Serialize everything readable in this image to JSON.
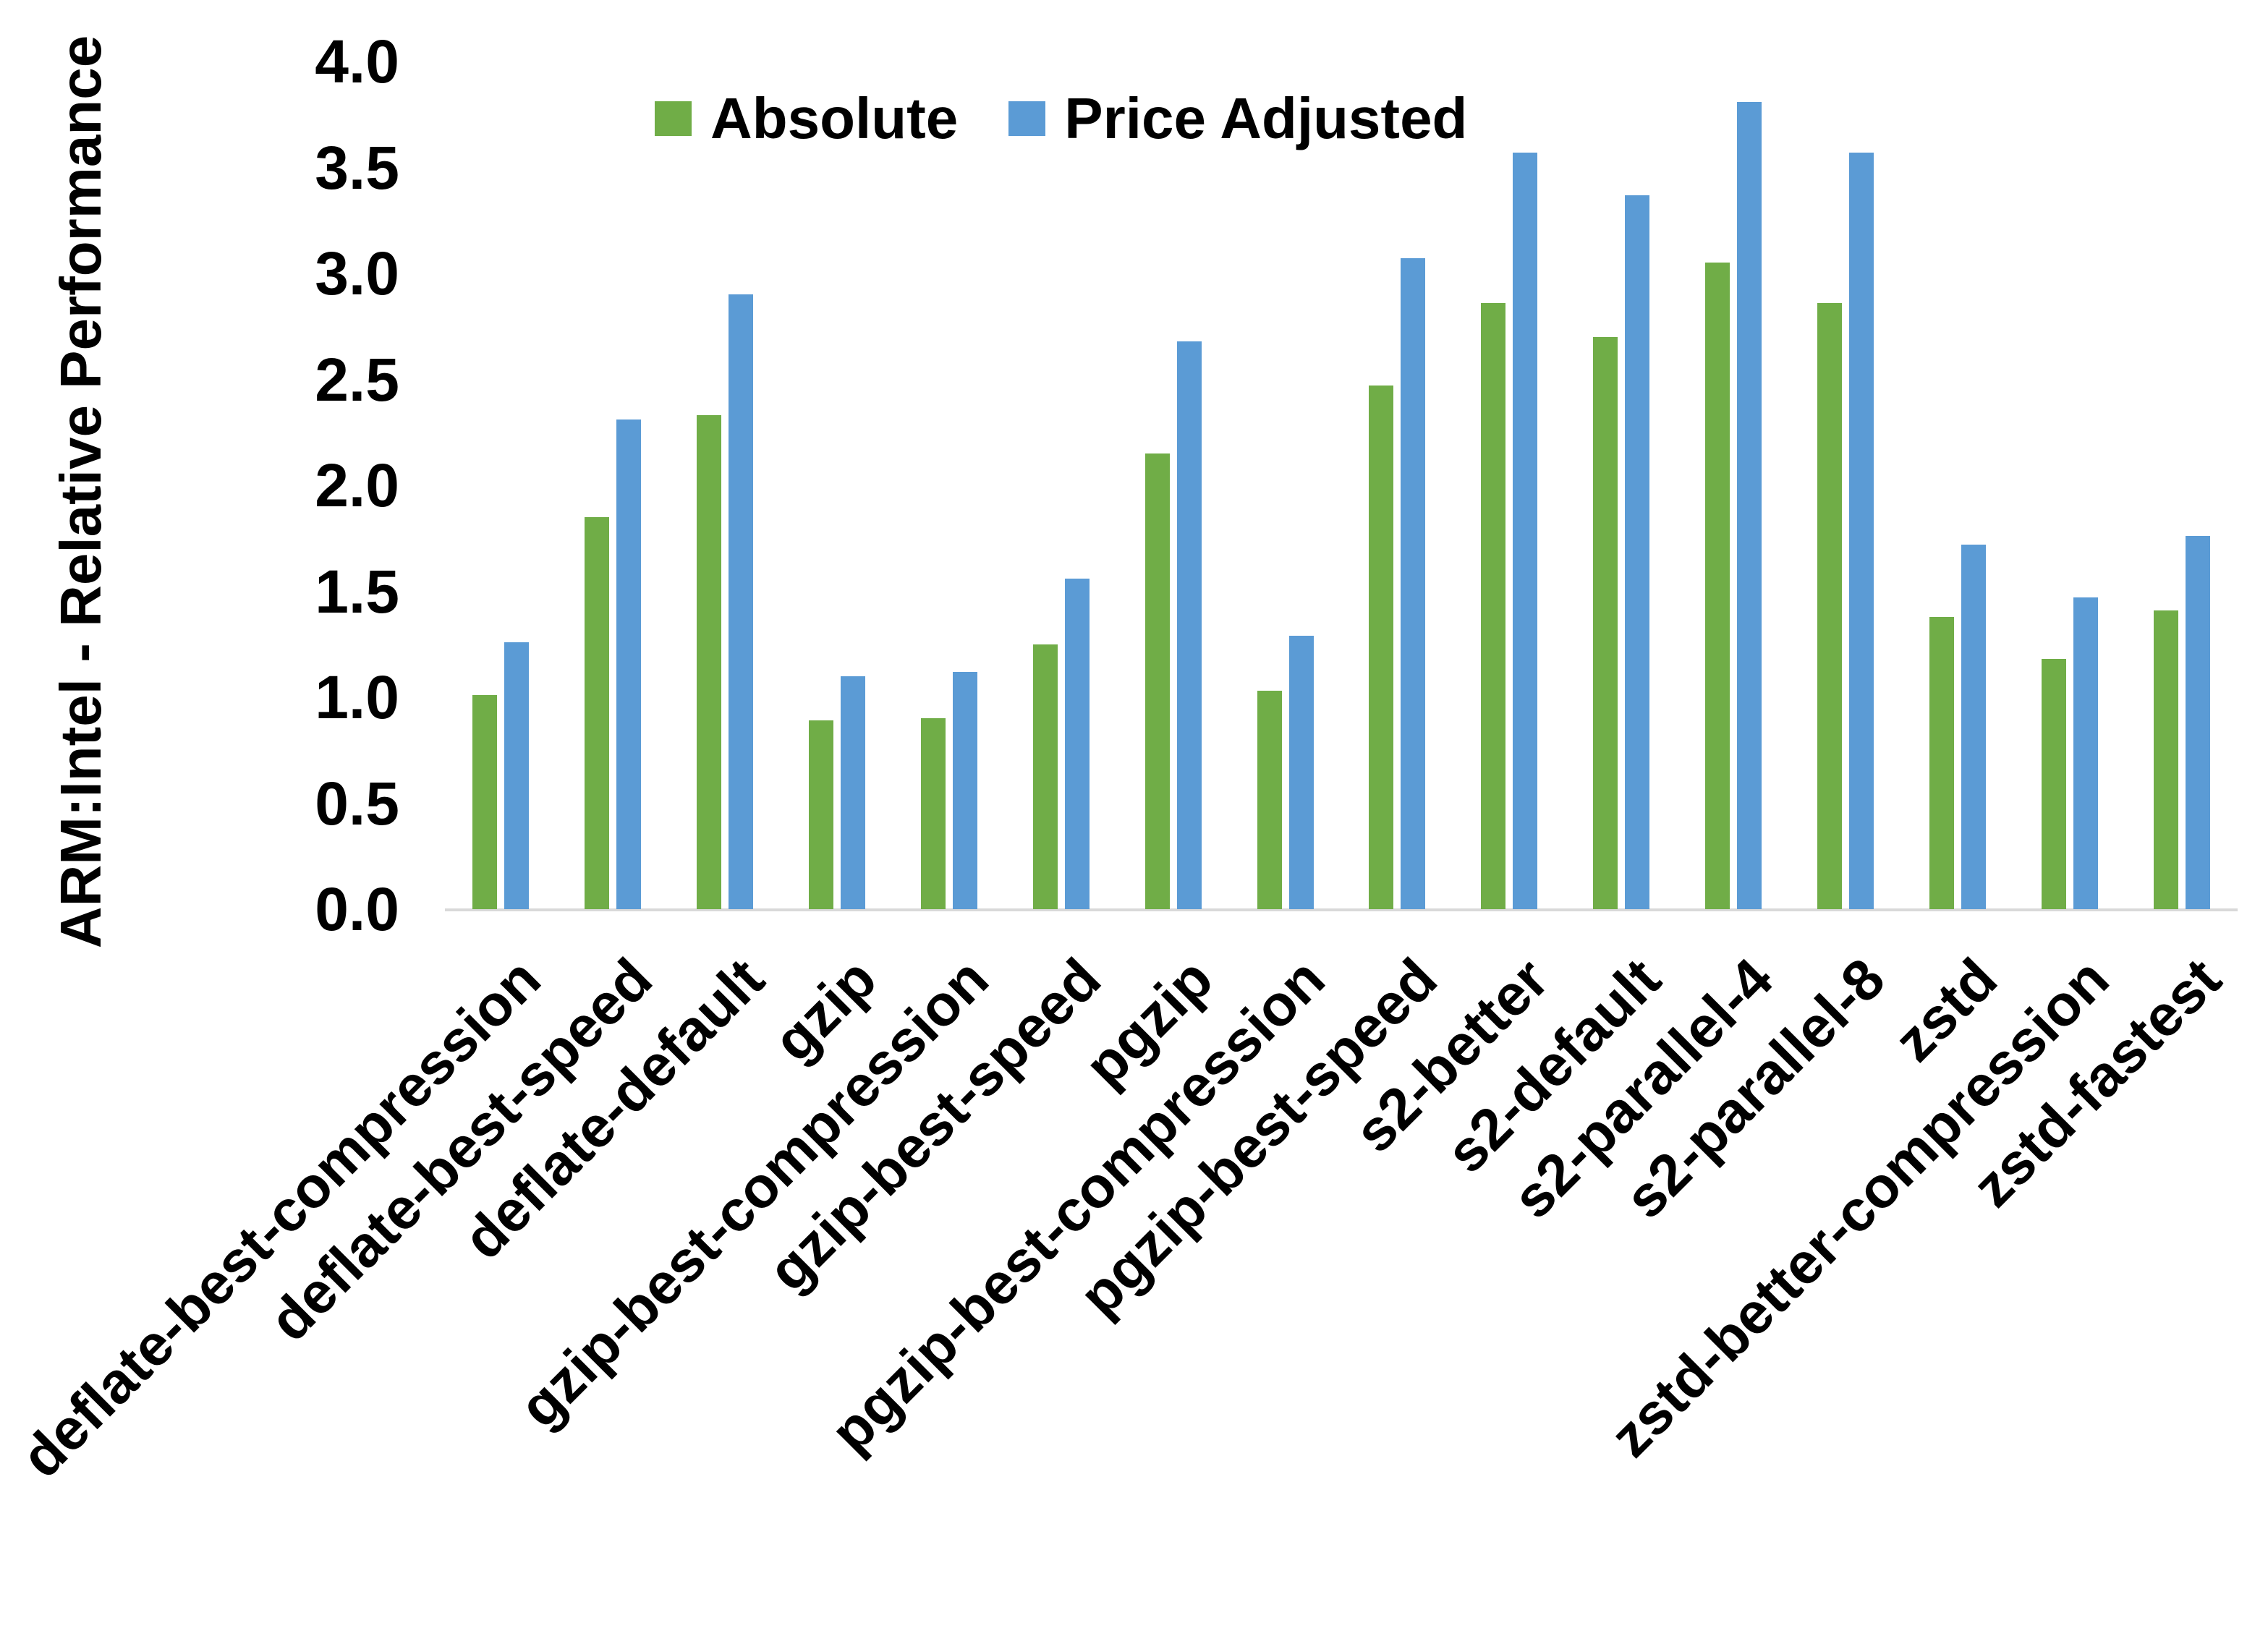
{
  "chart_data": {
    "type": "bar",
    "title": "",
    "xlabel": "",
    "ylabel": "ARM:Intel - Relative Performance",
    "ylim": [
      0.0,
      4.0
    ],
    "ytick_step": 0.5,
    "yticks": [
      "0.0",
      "0.5",
      "1.0",
      "1.5",
      "2.0",
      "2.5",
      "3.0",
      "3.5",
      "4.0"
    ],
    "grid": false,
    "legend_position": "top-center",
    "categories": [
      "deflate-best-compression",
      "deflate-best-speed",
      "deflate-default",
      "gzip",
      "gzip-best-compression",
      "gzip-best-speed",
      "pgzip",
      "pgzip-best-compression",
      "pgzip-best-speed",
      "s2-better",
      "s2-default",
      "s2-parallel-4",
      "s2-parallel-8",
      "zstd",
      "zstd-better-compression",
      "zstd-fastest"
    ],
    "series": [
      {
        "name": "Absolute",
        "color": "#70AD47",
        "values": [
          1.01,
          1.85,
          2.33,
          0.89,
          0.9,
          1.25,
          2.15,
          1.03,
          2.47,
          2.86,
          2.7,
          3.05,
          2.86,
          1.38,
          1.18,
          1.41
        ]
      },
      {
        "name": "Price Adjusted",
        "color": "#5B9BD5",
        "values": [
          1.26,
          2.31,
          2.9,
          1.1,
          1.12,
          1.56,
          2.68,
          1.29,
          3.07,
          3.57,
          3.37,
          3.81,
          3.57,
          1.72,
          1.47,
          1.76
        ]
      }
    ]
  },
  "colors": {
    "axis_line": "#D9D9D9",
    "text": "#000000",
    "frame_border": "#000000",
    "background": "#FFFFFF"
  }
}
